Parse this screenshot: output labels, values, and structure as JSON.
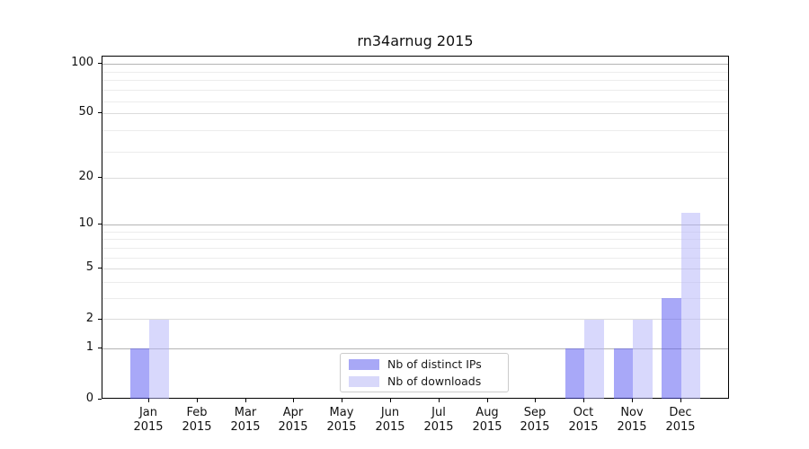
{
  "chart_data": {
    "type": "bar",
    "title": "rn34arnug 2015",
    "categories": [
      {
        "month": "Jan",
        "year": "2015"
      },
      {
        "month": "Feb",
        "year": "2015"
      },
      {
        "month": "Mar",
        "year": "2015"
      },
      {
        "month": "Apr",
        "year": "2015"
      },
      {
        "month": "May",
        "year": "2015"
      },
      {
        "month": "Jun",
        "year": "2015"
      },
      {
        "month": "Jul",
        "year": "2015"
      },
      {
        "month": "Aug",
        "year": "2015"
      },
      {
        "month": "Sep",
        "year": "2015"
      },
      {
        "month": "Oct",
        "year": "2015"
      },
      {
        "month": "Nov",
        "year": "2015"
      },
      {
        "month": "Dec",
        "year": "2015"
      }
    ],
    "series": [
      {
        "name": "Nb of distinct IPs",
        "values": [
          1,
          0,
          0,
          0,
          0,
          0,
          0,
          0,
          0,
          1,
          1,
          3
        ],
        "bar_fill": "rgba(81,81,241,0.5)",
        "legend_fill": "#a8a8f6"
      },
      {
        "name": "Nb of downloads",
        "values": [
          2,
          0,
          0,
          0,
          0,
          0,
          0,
          0,
          0,
          2,
          2,
          12
        ],
        "bar_fill": "rgba(177,177,250,0.5)",
        "legend_fill": "#d8d8fa"
      }
    ],
    "yscale": "log1p",
    "ylim": [
      0,
      100
    ],
    "yticks_labeled": [
      0,
      1,
      2,
      5,
      10,
      20,
      50,
      100
    ],
    "yticks_strong": [
      1,
      10,
      100
    ],
    "yticks_mid": [
      2,
      5,
      20,
      50
    ],
    "yticks_minor": [
      3,
      4,
      6,
      7,
      8,
      9,
      29,
      39,
      59,
      69,
      79,
      89
    ],
    "grid_colors": {
      "strong": "#b4b4b4",
      "mid": "#dcdcdc",
      "minor": "#ececec"
    },
    "legend": {
      "position": "lower center"
    }
  }
}
